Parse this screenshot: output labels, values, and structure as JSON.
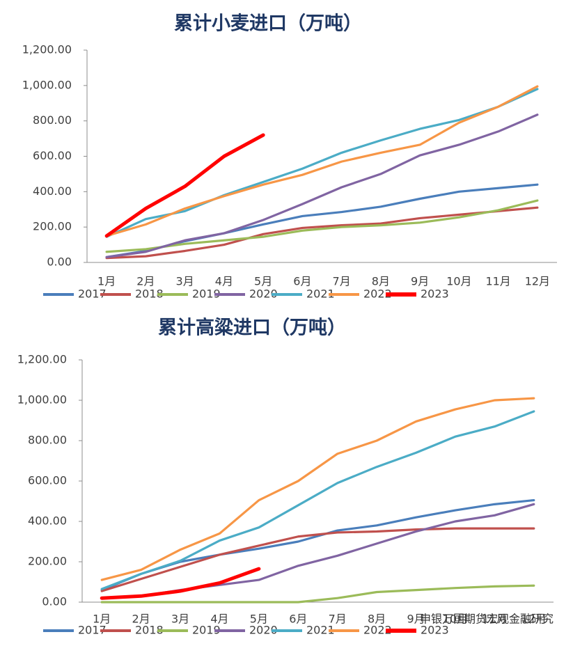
{
  "chart_data": [
    {
      "type": "line",
      "title": "累计小麦进口（万吨）",
      "categories": [
        "1月",
        "2月",
        "3月",
        "4月",
        "5月",
        "6月",
        "7月",
        "8月",
        "9月",
        "10月",
        "11月",
        "12月"
      ],
      "ylim": [
        0,
        1200
      ],
      "yticks": [
        {
          "value": 0,
          "label": "0.00"
        },
        {
          "value": 200,
          "label": "200.00"
        },
        {
          "value": 400,
          "label": "400.00"
        },
        {
          "value": 600,
          "label": "600.00"
        },
        {
          "value": 800,
          "label": "800.00"
        },
        {
          "value": 1000,
          "label": "1,000.00"
        },
        {
          "value": 1200,
          "label": "1,200.00"
        }
      ],
      "grid": false,
      "legend": "bottom",
      "series": [
        {
          "name": "2017",
          "color": "#4a7ebb",
          "values": [
            30,
            65,
            120,
            165,
            215,
            262,
            285,
            315,
            360,
            400,
            420,
            440
          ]
        },
        {
          "name": "2018",
          "color": "#c0504d",
          "values": [
            25,
            35,
            65,
            100,
            160,
            195,
            210,
            220,
            250,
            270,
            290,
            310
          ]
        },
        {
          "name": "2019",
          "color": "#9bbb59",
          "values": [
            60,
            75,
            105,
            125,
            145,
            180,
            200,
            210,
            225,
            255,
            295,
            350
          ]
        },
        {
          "name": "2020",
          "color": "#8064a2",
          "values": [
            30,
            60,
            125,
            165,
            240,
            330,
            425,
            500,
            605,
            665,
            740,
            835
          ]
        },
        {
          "name": "2021",
          "color": "#4bacc6",
          "values": [
            145,
            245,
            290,
            380,
            455,
            530,
            620,
            690,
            755,
            805,
            880,
            980
          ]
        },
        {
          "name": "2022",
          "color": "#f79646",
          "values": [
            150,
            215,
            305,
            375,
            440,
            495,
            570,
            620,
            665,
            790,
            880,
            995
          ]
        },
        {
          "name": "2023",
          "color": "#ff0000",
          "values": [
            150,
            305,
            430,
            600,
            720,
            null,
            null,
            null,
            null,
            null,
            null,
            null
          ]
        }
      ]
    },
    {
      "type": "line",
      "title": "累计高粱进口（万吨）",
      "categories": [
        "1月",
        "2月",
        "3月",
        "4月",
        "5月",
        "6月",
        "7月",
        "8月",
        "9月",
        "10月",
        "11月",
        "12月"
      ],
      "ylim": [
        0,
        1200
      ],
      "yticks": [
        {
          "value": 0,
          "label": "0.00"
        },
        {
          "value": 200,
          "label": "200.00"
        },
        {
          "value": 400,
          "label": "400.00"
        },
        {
          "value": 600,
          "label": "600.00"
        },
        {
          "value": 800,
          "label": "800.00"
        },
        {
          "value": 1000,
          "label": "1,000.00"
        },
        {
          "value": 1200,
          "label": "1,200.00"
        }
      ],
      "grid": false,
      "legend": "bottom",
      "watermark": "申银万国期货宏观金融研究",
      "series": [
        {
          "name": "2017",
          "color": "#4a7ebb",
          "values": [
            60,
            140,
            200,
            235,
            265,
            300,
            355,
            380,
            420,
            455,
            485,
            505
          ]
        },
        {
          "name": "2018",
          "color": "#c0504d",
          "values": [
            55,
            115,
            175,
            235,
            280,
            325,
            345,
            350,
            360,
            365,
            365,
            365
          ]
        },
        {
          "name": "2019",
          "color": "#9bbb59",
          "values": [
            0,
            0,
            0,
            0,
            0,
            0,
            20,
            50,
            60,
            70,
            78,
            82
          ]
        },
        {
          "name": "2020",
          "color": "#8064a2",
          "values": [
            20,
            30,
            60,
            85,
            110,
            180,
            230,
            290,
            350,
            400,
            430,
            485
          ]
        },
        {
          "name": "2021",
          "color": "#4bacc6",
          "values": [
            65,
            140,
            205,
            305,
            370,
            480,
            590,
            670,
            740,
            820,
            870,
            945
          ]
        },
        {
          "name": "2022",
          "color": "#f79646",
          "values": [
            110,
            160,
            260,
            340,
            505,
            600,
            735,
            800,
            895,
            955,
            1000,
            1010
          ]
        },
        {
          "name": "2023",
          "color": "#ff0000",
          "values": [
            20,
            30,
            55,
            95,
            165,
            null,
            null,
            null,
            null,
            null,
            null,
            null
          ]
        }
      ]
    }
  ]
}
